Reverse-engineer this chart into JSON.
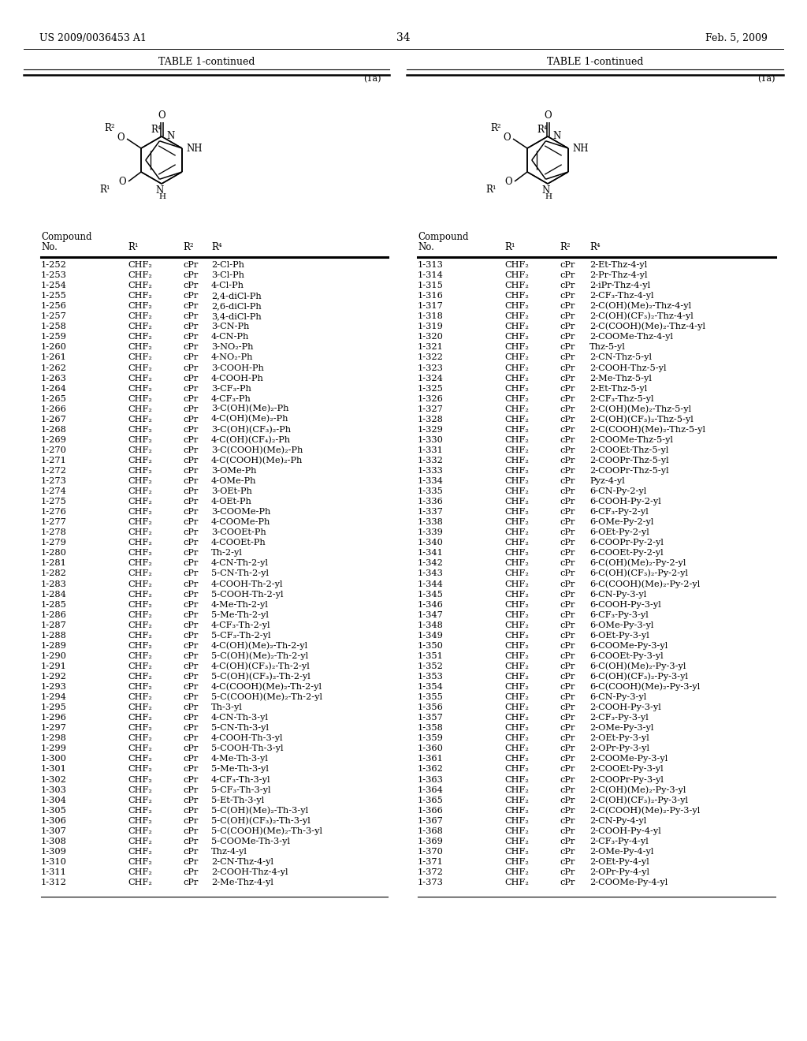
{
  "page_header_left": "US 2009/0036453 A1",
  "page_header_right": "Feb. 5, 2009",
  "page_number": "34",
  "table_title": "TABLE 1-continued",
  "label_1a": "(1a)",
  "left_table": {
    "rows": [
      [
        "1-252",
        "CHF₂",
        "cPr",
        "2-Cl-Ph"
      ],
      [
        "1-253",
        "CHF₂",
        "cPr",
        "3-Cl-Ph"
      ],
      [
        "1-254",
        "CHF₂",
        "cPr",
        "4-Cl-Ph"
      ],
      [
        "1-255",
        "CHF₂",
        "cPr",
        "2,4-diCl-Ph"
      ],
      [
        "1-256",
        "CHF₂",
        "cPr",
        "2,6-diCl-Ph"
      ],
      [
        "1-257",
        "CHF₂",
        "cPr",
        "3,4-diCl-Ph"
      ],
      [
        "1-258",
        "CHF₂",
        "cPr",
        "3-CN-Ph"
      ],
      [
        "1-259",
        "CHF₂",
        "cPr",
        "4-CN-Ph"
      ],
      [
        "1-260",
        "CHF₂",
        "cPr",
        "3-NO₂-Ph"
      ],
      [
        "1-261",
        "CHF₂",
        "cPr",
        "4-NO₂-Ph"
      ],
      [
        "1-262",
        "CHF₂",
        "cPr",
        "3-COOH-Ph"
      ],
      [
        "1-263",
        "CHF₂",
        "cPr",
        "4-COOH-Ph"
      ],
      [
        "1-264",
        "CHF₂",
        "cPr",
        "3-CF₃-Ph"
      ],
      [
        "1-265",
        "CHF₂",
        "cPr",
        "4-CF₃-Ph"
      ],
      [
        "1-266",
        "CHF₂",
        "cPr",
        "3-C(OH)(Me)₂-Ph"
      ],
      [
        "1-267",
        "CHF₂",
        "cPr",
        "4-C(OH)(Me)₂-Ph"
      ],
      [
        "1-268",
        "CHF₂",
        "cPr",
        "3-C(OH)(CF₃)₂-Ph"
      ],
      [
        "1-269",
        "CHF₂",
        "cPr",
        "4-C(OH)(CF₄)₂-Ph"
      ],
      [
        "1-270",
        "CHF₂",
        "cPr",
        "3-C(COOH)(Me)₂-Ph"
      ],
      [
        "1-271",
        "CHF₂",
        "cPr",
        "4-C(COOH)(Me)₂-Ph"
      ],
      [
        "1-272",
        "CHF₂",
        "cPr",
        "3-OMe-Ph"
      ],
      [
        "1-273",
        "CHF₂",
        "cPr",
        "4-OMe-Ph"
      ],
      [
        "1-274",
        "CHF₂",
        "cPr",
        "3-OEt-Ph"
      ],
      [
        "1-275",
        "CHF₂",
        "cPr",
        "4-OEt-Ph"
      ],
      [
        "1-276",
        "CHF₂",
        "cPr",
        "3-COOMe-Ph"
      ],
      [
        "1-277",
        "CHF₂",
        "cPr",
        "4-COOMe-Ph"
      ],
      [
        "1-278",
        "CHF₂",
        "cPr",
        "3-COOEt-Ph"
      ],
      [
        "1-279",
        "CHF₂",
        "cPr",
        "4-COOEt-Ph"
      ],
      [
        "1-280",
        "CHF₂",
        "cPr",
        "Th-2-yl"
      ],
      [
        "1-281",
        "CHF₂",
        "cPr",
        "4-CN-Th-2-yl"
      ],
      [
        "1-282",
        "CHF₂",
        "cPr",
        "5-CN-Th-2-yl"
      ],
      [
        "1-283",
        "CHF₂",
        "cPr",
        "4-COOH-Th-2-yl"
      ],
      [
        "1-284",
        "CHF₂",
        "cPr",
        "5-COOH-Th-2-yl"
      ],
      [
        "1-285",
        "CHF₂",
        "cPr",
        "4-Me-Th-2-yl"
      ],
      [
        "1-286",
        "CHF₂",
        "cPr",
        "5-Me-Th-2-yl"
      ],
      [
        "1-287",
        "CHF₂",
        "cPr",
        "4-CF₃-Th-2-yl"
      ],
      [
        "1-288",
        "CHF₂",
        "cPr",
        "5-CF₃-Th-2-yl"
      ],
      [
        "1-289",
        "CHF₂",
        "cPr",
        "4-C(OH)(Me)₂-Th-2-yl"
      ],
      [
        "1-290",
        "CHF₂",
        "cPr",
        "5-C(OH)(Me)₂-Th-2-yl"
      ],
      [
        "1-291",
        "CHF₂",
        "cPr",
        "4-C(OH)(CF₃)₂-Th-2-yl"
      ],
      [
        "1-292",
        "CHF₂",
        "cPr",
        "5-C(OH)(CF₃)₂-Th-2-yl"
      ],
      [
        "1-293",
        "CHF₂",
        "cPr",
        "4-C(COOH)(Me)₂-Th-2-yl"
      ],
      [
        "1-294",
        "CHF₂",
        "cPr",
        "5-C(COOH)(Me)₂-Th-2-yl"
      ],
      [
        "1-295",
        "CHF₂",
        "cPr",
        "Th-3-yl"
      ],
      [
        "1-296",
        "CHF₂",
        "cPr",
        "4-CN-Th-3-yl"
      ],
      [
        "1-297",
        "CHF₂",
        "cPr",
        "5-CN-Th-3-yl"
      ],
      [
        "1-298",
        "CHF₂",
        "cPr",
        "4-COOH-Th-3-yl"
      ],
      [
        "1-299",
        "CHF₂",
        "cPr",
        "5-COOH-Th-3-yl"
      ],
      [
        "1-300",
        "CHF₂",
        "cPr",
        "4-Me-Th-3-yl"
      ],
      [
        "1-301",
        "CHF₂",
        "cPr",
        "5-Me-Th-3-yl"
      ],
      [
        "1-302",
        "CHF₂",
        "cPr",
        "4-CF₃-Th-3-yl"
      ],
      [
        "1-303",
        "CHF₂",
        "cPr",
        "5-CF₃-Th-3-yl"
      ],
      [
        "1-304",
        "CHF₂",
        "cPr",
        "5-Et-Th-3-yl"
      ],
      [
        "1-305",
        "CHF₂",
        "cPr",
        "5-C(OH)(Me)₂-Th-3-yl"
      ],
      [
        "1-306",
        "CHF₂",
        "cPr",
        "5-C(OH)(CF₃)₂-Th-3-yl"
      ],
      [
        "1-307",
        "CHF₂",
        "cPr",
        "5-C(COOH)(Me)₂-Th-3-yl"
      ],
      [
        "1-308",
        "CHF₂",
        "cPr",
        "5-COOMe-Th-3-yl"
      ],
      [
        "1-309",
        "CHF₂",
        "cPr",
        "Thz-4-yl"
      ],
      [
        "1-310",
        "CHF₂",
        "cPr",
        "2-CN-Thz-4-yl"
      ],
      [
        "1-311",
        "CHF₂",
        "cPr",
        "2-COOH-Thz-4-yl"
      ],
      [
        "1-312",
        "CHF₂",
        "cPr",
        "2-Me-Thz-4-yl"
      ]
    ]
  },
  "right_table": {
    "rows": [
      [
        "1-313",
        "CHF₂",
        "cPr",
        "2-Et-Thz-4-yl"
      ],
      [
        "1-314",
        "CHF₂",
        "cPr",
        "2-Pr-Thz-4-yl"
      ],
      [
        "1-315",
        "CHF₂",
        "cPr",
        "2-iPr-Thz-4-yl"
      ],
      [
        "1-316",
        "CHF₂",
        "cPr",
        "2-CF₃-Thz-4-yl"
      ],
      [
        "1-317",
        "CHF₂",
        "cPr",
        "2-C(OH)(Me)₂-Thz-4-yl"
      ],
      [
        "1-318",
        "CHF₂",
        "cPr",
        "2-C(OH)(CF₃)₂-Thz-4-yl"
      ],
      [
        "1-319",
        "CHF₂",
        "cPr",
        "2-C(COOH)(Me)₂-Thz-4-yl"
      ],
      [
        "1-320",
        "CHF₂",
        "cPr",
        "2-COOMe-Thz-4-yl"
      ],
      [
        "1-321",
        "CHF₂",
        "cPr",
        "Thz-5-yl"
      ],
      [
        "1-322",
        "CHF₂",
        "cPr",
        "2-CN-Thz-5-yl"
      ],
      [
        "1-323",
        "CHF₂",
        "cPr",
        "2-COOH-Thz-5-yl"
      ],
      [
        "1-324",
        "CHF₂",
        "cPr",
        "2-Me-Thz-5-yl"
      ],
      [
        "1-325",
        "CHF₂",
        "cPr",
        "2-Et-Thz-5-yl"
      ],
      [
        "1-326",
        "CHF₂",
        "cPr",
        "2-CF₃-Thz-5-yl"
      ],
      [
        "1-327",
        "CHF₂",
        "cPr",
        "2-C(OH)(Me)₂-Thz-5-yl"
      ],
      [
        "1-328",
        "CHF₂",
        "cPr",
        "2-C(OH)(CF₃)₂-Thz-5-yl"
      ],
      [
        "1-329",
        "CHF₂",
        "cPr",
        "2-C(COOH)(Me)₂-Thz-5-yl"
      ],
      [
        "1-330",
        "CHF₂",
        "cPr",
        "2-COOMe-Thz-5-yl"
      ],
      [
        "1-331",
        "CHF₂",
        "cPr",
        "2-COOEt-Thz-5-yl"
      ],
      [
        "1-332",
        "CHF₂",
        "cPr",
        "2-COOPr-Thz-5-yl"
      ],
      [
        "1-333",
        "CHF₂",
        "cPr",
        "2-COOPr-Thz-5-yl"
      ],
      [
        "1-334",
        "CHF₂",
        "cPr",
        "Pyz-4-yl"
      ],
      [
        "1-335",
        "CHF₂",
        "cPr",
        "6-CN-Py-2-yl"
      ],
      [
        "1-336",
        "CHF₂",
        "cPr",
        "6-COOH-Py-2-yl"
      ],
      [
        "1-337",
        "CHF₂",
        "cPr",
        "6-CF₃-Py-2-yl"
      ],
      [
        "1-338",
        "CHF₂",
        "cPr",
        "6-OMe-Py-2-yl"
      ],
      [
        "1-339",
        "CHF₂",
        "cPr",
        "6-OEt-Py-2-yl"
      ],
      [
        "1-340",
        "CHF₂",
        "cPr",
        "6-COOPr-Py-2-yl"
      ],
      [
        "1-341",
        "CHF₂",
        "cPr",
        "6-COOEt-Py-2-yl"
      ],
      [
        "1-342",
        "CHF₂",
        "cPr",
        "6-C(OH)(Me)₂-Py-2-yl"
      ],
      [
        "1-343",
        "CHF₂",
        "cPr",
        "6-C(OH)(CF₃)₂-Py-2-yl"
      ],
      [
        "1-344",
        "CHF₂",
        "cPr",
        "6-C(COOH)(Me)₂-Py-2-yl"
      ],
      [
        "1-345",
        "CHF₂",
        "cPr",
        "6-CN-Py-3-yl"
      ],
      [
        "1-346",
        "CHF₂",
        "cPr",
        "6-COOH-Py-3-yl"
      ],
      [
        "1-347",
        "CHF₂",
        "cPr",
        "6-CF₃-Py-3-yl"
      ],
      [
        "1-348",
        "CHF₂",
        "cPr",
        "6-OMe-Py-3-yl"
      ],
      [
        "1-349",
        "CHF₂",
        "cPr",
        "6-OEt-Py-3-yl"
      ],
      [
        "1-350",
        "CHF₂",
        "cPr",
        "6-COOMe-Py-3-yl"
      ],
      [
        "1-351",
        "CHF₂",
        "cPr",
        "6-COOEt-Py-3-yl"
      ],
      [
        "1-352",
        "CHF₂",
        "cPr",
        "6-C(OH)(Me)₂-Py-3-yl"
      ],
      [
        "1-353",
        "CHF₂",
        "cPr",
        "6-C(OH)(CF₃)₂-Py-3-yl"
      ],
      [
        "1-354",
        "CHF₂",
        "cPr",
        "6-C(COOH)(Me)₂-Py-3-yl"
      ],
      [
        "1-355",
        "CHF₂",
        "cPr",
        "6-CN-Py-3-yl"
      ],
      [
        "1-356",
        "CHF₂",
        "cPr",
        "2-COOH-Py-3-yl"
      ],
      [
        "1-357",
        "CHF₂",
        "cPr",
        "2-CF₃-Py-3-yl"
      ],
      [
        "1-358",
        "CHF₂",
        "cPr",
        "2-OMe-Py-3-yl"
      ],
      [
        "1-359",
        "CHF₂",
        "cPr",
        "2-OEt-Py-3-yl"
      ],
      [
        "1-360",
        "CHF₂",
        "cPr",
        "2-OPr-Py-3-yl"
      ],
      [
        "1-361",
        "CHF₂",
        "cPr",
        "2-COOMe-Py-3-yl"
      ],
      [
        "1-362",
        "CHF₂",
        "cPr",
        "2-COOEt-Py-3-yl"
      ],
      [
        "1-363",
        "CHF₂",
        "cPr",
        "2-COOPr-Py-3-yl"
      ],
      [
        "1-364",
        "CHF₂",
        "cPr",
        "2-C(OH)(Me)₂-Py-3-yl"
      ],
      [
        "1-365",
        "CHF₂",
        "cPr",
        "2-C(OH)(CF₃)₂-Py-3-yl"
      ],
      [
        "1-366",
        "CHF₂",
        "cPr",
        "2-C(COOH)(Me)₂-Py-3-yl"
      ],
      [
        "1-367",
        "CHF₂",
        "cPr",
        "2-CN-Py-4-yl"
      ],
      [
        "1-368",
        "CHF₂",
        "cPr",
        "2-COOH-Py-4-yl"
      ],
      [
        "1-369",
        "CHF₂",
        "cPr",
        "2-CF₃-Py-4-yl"
      ],
      [
        "1-370",
        "CHF₂",
        "cPr",
        "2-OMe-Py-4-yl"
      ],
      [
        "1-371",
        "CHF₂",
        "cPr",
        "2-OEt-Py-4-yl"
      ],
      [
        "1-372",
        "CHF₂",
        "cPr",
        "2-OPr-Py-4-yl"
      ],
      [
        "1-373",
        "CHF₂",
        "cPr",
        "2-COOMe-Py-4-yl"
      ]
    ]
  }
}
